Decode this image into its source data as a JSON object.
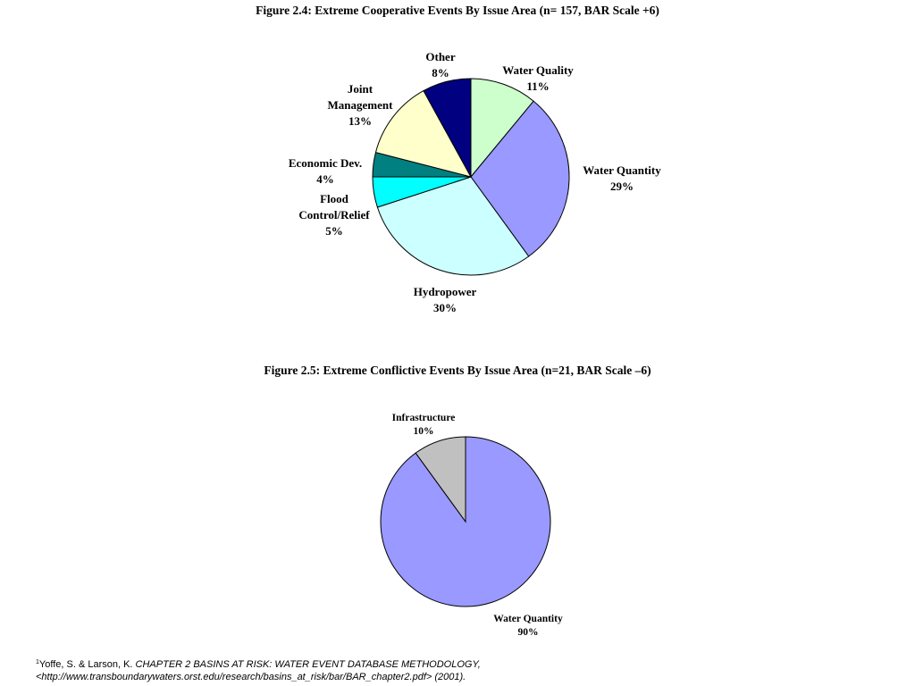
{
  "chart_data": [
    {
      "type": "pie",
      "title": "Figure 2.4: Extreme Cooperative Events By Issue Area (n= 157, BAR Scale +6)",
      "slices": [
        {
          "label": [
            "Water Quality"
          ],
          "percent_label": "11%",
          "value": 11,
          "color": "#ccffcc"
        },
        {
          "label": [
            "Water Quantity"
          ],
          "percent_label": "29%",
          "value": 29,
          "color": "#9999ff"
        },
        {
          "label": [
            "Hydropower"
          ],
          "percent_label": "30%",
          "value": 30,
          "color": "#ccffff"
        },
        {
          "label": [
            "Flood",
            "Control/Relief"
          ],
          "percent_label": "5%",
          "value": 5,
          "color": "#00ffff"
        },
        {
          "label": [
            "Economic Dev."
          ],
          "percent_label": "4%",
          "value": 4,
          "color": "#008080"
        },
        {
          "label": [
            "Joint",
            "Management"
          ],
          "percent_label": "13%",
          "value": 13,
          "color": "#ffffcc"
        },
        {
          "label": [
            "Other"
          ],
          "percent_label": "8%",
          "value": 8,
          "color": "#000080"
        }
      ]
    },
    {
      "type": "pie",
      "title": "Figure 2.5: Extreme Conflictive Events By Issue Area (n=21, BAR Scale –6)",
      "slices": [
        {
          "label": [
            "Water Quantity"
          ],
          "percent_label": "90%",
          "value": 90,
          "color": "#9999ff"
        },
        {
          "label": [
            "Infrastructure"
          ],
          "percent_label": "10%",
          "value": 10,
          "color": "#c0c0c0"
        }
      ]
    }
  ],
  "footnote": {
    "marker": "1",
    "authors": "Yoffe, S. & Larson, K. ",
    "citation_line1": "CHAPTER 2 BASINS AT RISK: WATER EVENT DATABASE METHODOLOGY,",
    "citation_line2": "<http://www.transboundarywaters.orst.edu/research/basins_at_risk/bar/BAR_chapter2.pdf> (2001)."
  }
}
